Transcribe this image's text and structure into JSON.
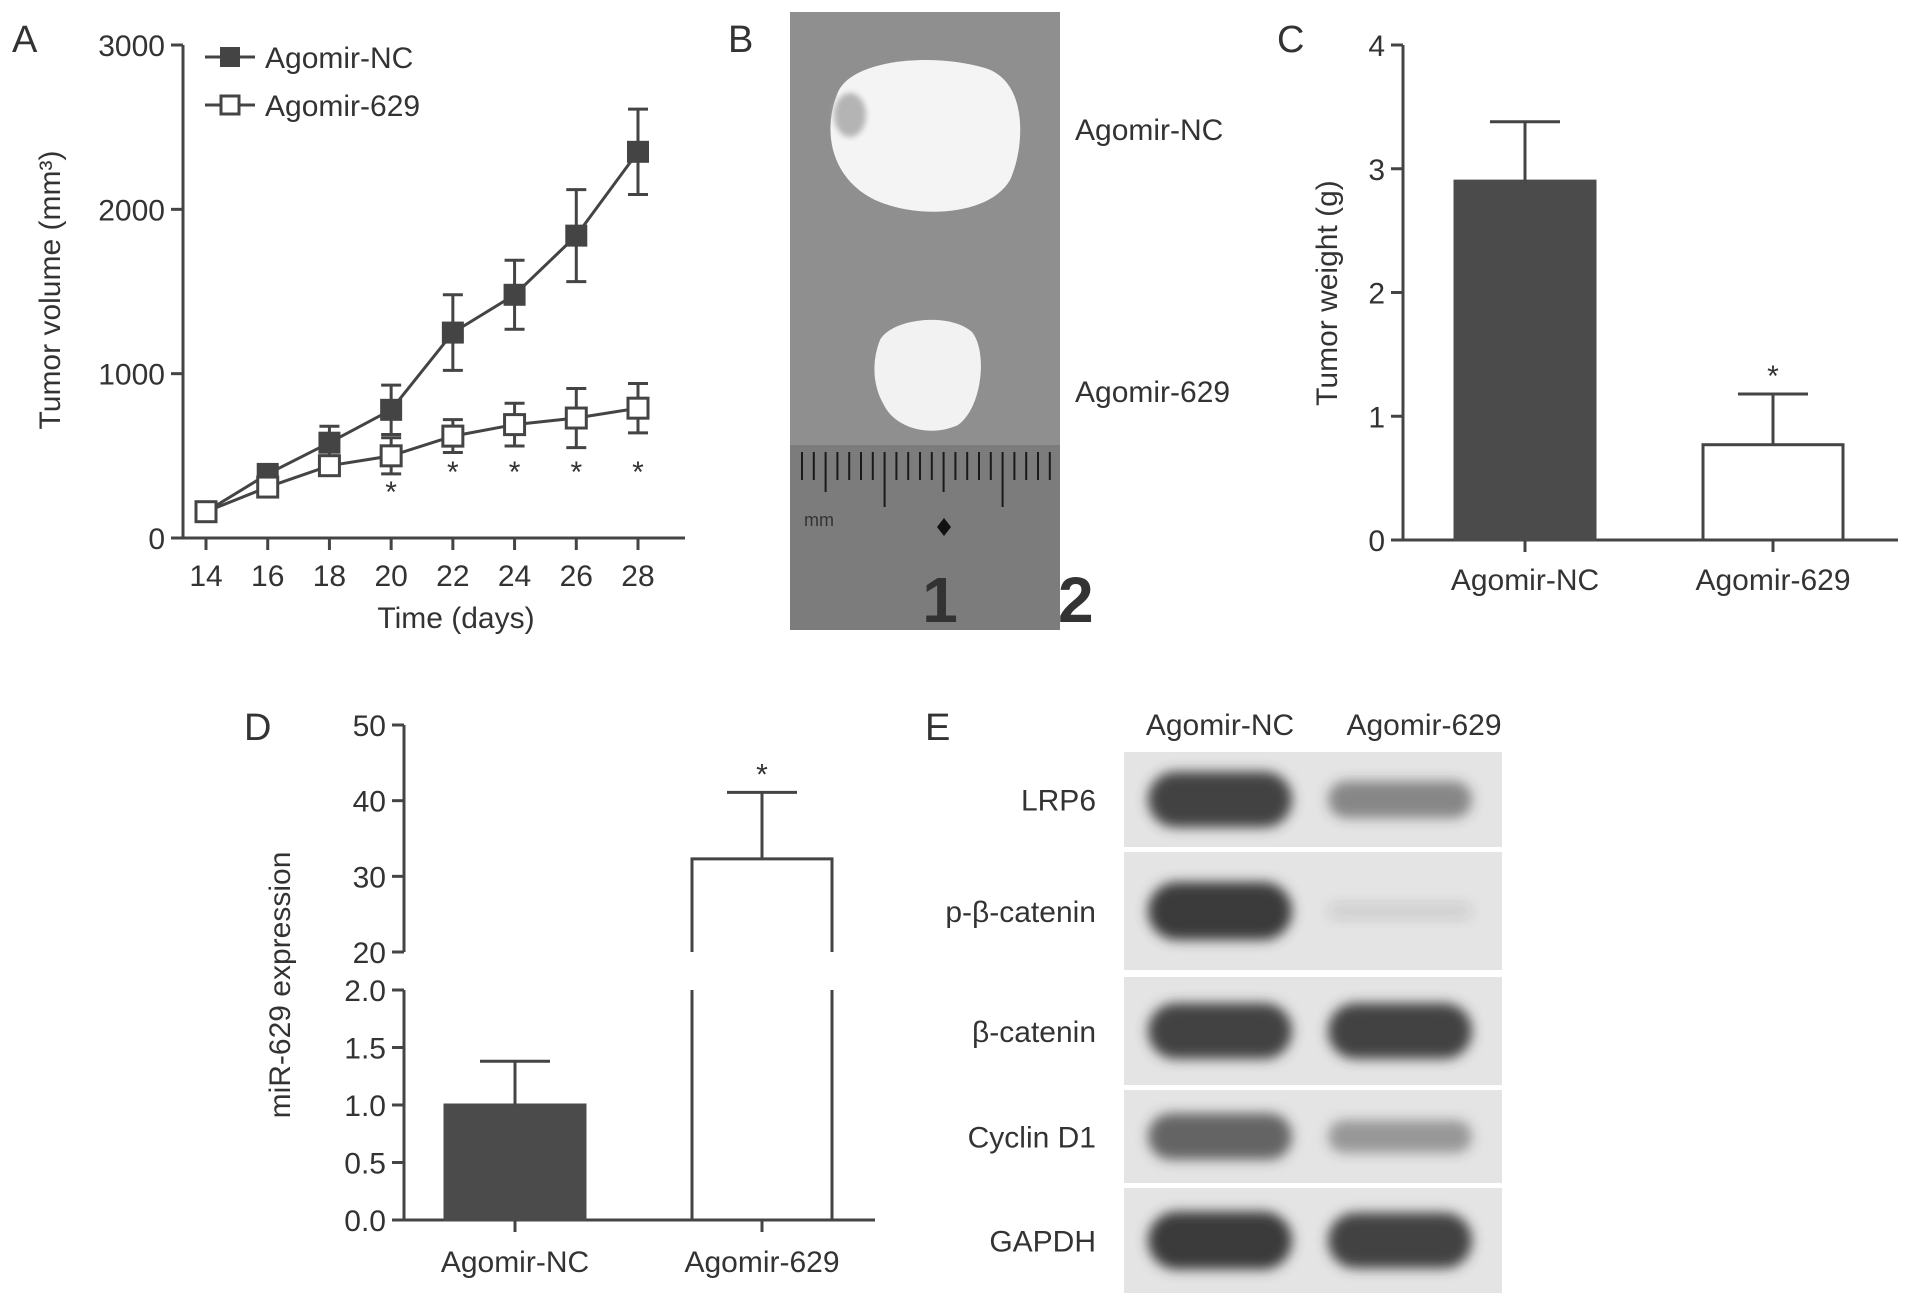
{
  "panels": {
    "a": {
      "letter": "A"
    },
    "b": {
      "letter": "B",
      "label_nc": "Agomir-NC",
      "label_629": "Agomir-629",
      "ruler_unit": "mm",
      "ruler_num1": "1",
      "ruler_num2": "2"
    },
    "c": {
      "letter": "C"
    },
    "d": {
      "letter": "D"
    },
    "e": {
      "letter": "E"
    }
  },
  "colors": {
    "dark_bar": "#4b4b4b",
    "axis": "#444444",
    "photo_bg": "#8f8f8f",
    "blot_bg": "#e4e4e4",
    "band": "#3a3a3a"
  },
  "chart_data": [
    {
      "id": "A",
      "type": "line",
      "xlabel": "Time (days)",
      "ylabel": "Tumor volume (mm³)",
      "x": [
        14,
        16,
        18,
        20,
        22,
        24,
        26,
        28
      ],
      "ylim": [
        0,
        3000
      ],
      "yticks": [
        0,
        1000,
        2000,
        3000
      ],
      "legend_position": "top-left",
      "series": [
        {
          "name": "Agomir-NC",
          "marker": "filled-square",
          "values": [
            160,
            390,
            580,
            780,
            1250,
            1480,
            1840,
            2350
          ],
          "errors": [
            20,
            50,
            100,
            150,
            230,
            210,
            280,
            260
          ]
        },
        {
          "name": "Agomir-629",
          "marker": "open-square",
          "values": [
            160,
            310,
            440,
            500,
            620,
            690,
            730,
            790
          ],
          "errors": [
            20,
            40,
            60,
            110,
            100,
            130,
            180,
            150
          ]
        }
      ],
      "significance": [
        {
          "x": 20,
          "label": "*"
        },
        {
          "x": 22,
          "label": "*"
        },
        {
          "x": 24,
          "label": "*"
        },
        {
          "x": 26,
          "label": "*"
        },
        {
          "x": 28,
          "label": "*"
        }
      ]
    },
    {
      "id": "C",
      "type": "bar",
      "ylabel": "Tumor weight (g)",
      "categories": [
        "Agomir-NC",
        "Agomir-629"
      ],
      "values": [
        2.9,
        0.77
      ],
      "errors": [
        0.48,
        0.41
      ],
      "ylim": [
        0,
        4
      ],
      "yticks": [
        0,
        1,
        2,
        3,
        4
      ],
      "significance": [
        {
          "category": "Agomir-629",
          "label": "*"
        }
      ]
    },
    {
      "id": "D",
      "type": "bar",
      "ylabel": "miR-629 expression",
      "categories": [
        "Agomir-NC",
        "Agomir-629"
      ],
      "values": [
        1.0,
        32.3
      ],
      "errors": [
        0.38,
        8.8
      ],
      "broken_axis": {
        "lower": [
          0,
          2.0
        ],
        "upper": [
          20,
          50
        ]
      },
      "yticks_lower": [
        "0.0",
        "0.5",
        "1.0",
        "1.5",
        "2.0"
      ],
      "yticks_upper": [
        20,
        30,
        40,
        50
      ],
      "significance": [
        {
          "category": "Agomir-629",
          "label": "*"
        }
      ]
    },
    {
      "id": "E",
      "type": "table",
      "columns": [
        "Agomir-NC",
        "Agomir-629"
      ],
      "rows": [
        {
          "label": "LRP6",
          "intensity": [
            0.95,
            0.55
          ]
        },
        {
          "label": "p-β-catenin",
          "intensity": [
            1.0,
            0.08
          ]
        },
        {
          "label": "β-catenin",
          "intensity": [
            0.95,
            0.95
          ]
        },
        {
          "label": "Cyclin D1",
          "intensity": [
            0.75,
            0.45
          ]
        },
        {
          "label": "GAPDH",
          "intensity": [
            1.0,
            0.95
          ]
        }
      ]
    }
  ]
}
